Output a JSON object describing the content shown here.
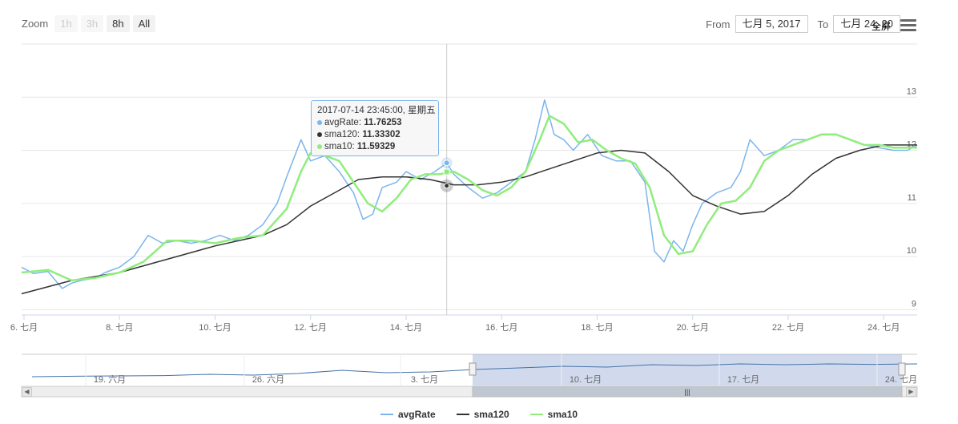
{
  "zoom": {
    "label": "Zoom",
    "buttons": [
      "1h",
      "3h",
      "8h",
      "All"
    ],
    "active": "8h"
  },
  "range": {
    "from_label": "From",
    "from_value": "七月 5, 2017",
    "to_label": "To",
    "to_value": "七月 24, 20"
  },
  "fullscreen_label": "全屏",
  "tooltip": {
    "header": "2017-07-14 23:45:00, 星期五",
    "rows": [
      {
        "name": "avgRate",
        "value": "11.76253",
        "color": "#7cb5ec"
      },
      {
        "name": "sma120",
        "value": "11.33302",
        "color": "#333333"
      },
      {
        "name": "sma10",
        "value": "11.59329",
        "color": "#90ed7d"
      }
    ]
  },
  "navigator": {
    "labels": [
      "19. 六月",
      "26. 六月",
      "3. 七月",
      "10. 七月",
      "17. 七月",
      "24. 七月"
    ]
  },
  "chart_data": {
    "type": "line",
    "x_tick_labels": [
      "6. 七月",
      "8. 七月",
      "10. 七月",
      "12. 七月",
      "14. 七月",
      "16. 七月",
      "18. 七月",
      "20. 七月",
      "22. 七月",
      "24. 七月"
    ],
    "y_ticks": [
      9,
      10,
      11,
      12,
      13
    ],
    "ylim": [
      8.9,
      14.0
    ],
    "xlim_days": [
      5.95,
      24.7
    ],
    "grid": true,
    "legend_position": "bottom-center",
    "series": [
      {
        "name": "avgRate",
        "color": "#7cb5ec",
        "x": [
          5.95,
          6.2,
          6.5,
          6.8,
          7.0,
          7.2,
          7.5,
          7.7,
          8.0,
          8.3,
          8.6,
          8.9,
          9.2,
          9.5,
          9.8,
          10.1,
          10.4,
          10.7,
          11.0,
          11.3,
          11.5,
          11.8,
          12.0,
          12.3,
          12.6,
          12.9,
          13.1,
          13.3,
          13.5,
          13.8,
          14.0,
          14.3,
          14.6,
          14.85,
          15.0,
          15.3,
          15.6,
          15.9,
          16.2,
          16.5,
          16.7,
          16.9,
          17.1,
          17.3,
          17.5,
          17.8,
          18.1,
          18.4,
          18.7,
          19.0,
          19.2,
          19.4,
          19.6,
          19.8,
          20.0,
          20.2,
          20.5,
          20.8,
          21.0,
          21.2,
          21.5,
          21.8,
          22.1,
          22.4,
          22.7,
          23.0,
          23.3,
          23.6,
          23.9,
          24.2,
          24.5,
          24.7
        ],
        "y": [
          9.8,
          9.68,
          9.72,
          9.4,
          9.5,
          9.55,
          9.6,
          9.7,
          9.8,
          10.0,
          10.4,
          10.25,
          10.3,
          10.25,
          10.3,
          10.4,
          10.3,
          10.4,
          10.6,
          11.0,
          11.5,
          12.2,
          11.8,
          11.9,
          11.6,
          11.2,
          10.7,
          10.8,
          11.3,
          11.4,
          11.6,
          11.45,
          11.6,
          11.76,
          11.55,
          11.3,
          11.1,
          11.2,
          11.4,
          11.6,
          12.2,
          12.95,
          12.3,
          12.2,
          12.0,
          12.3,
          11.9,
          11.8,
          11.8,
          11.4,
          10.1,
          9.9,
          10.3,
          10.1,
          10.6,
          11.0,
          11.2,
          11.3,
          11.6,
          12.2,
          11.9,
          12.0,
          12.2,
          12.2,
          12.3,
          12.3,
          12.2,
          12.1,
          12.05,
          12.0,
          12.0,
          12.1
        ]
      },
      {
        "name": "sma120",
        "color": "#333333",
        "x": [
          5.95,
          7.0,
          8.0,
          9.0,
          10.0,
          11.0,
          11.5,
          12.0,
          12.5,
          13.0,
          13.5,
          14.0,
          14.5,
          15.0,
          15.5,
          16.0,
          16.5,
          17.0,
          17.5,
          18.0,
          18.5,
          19.0,
          19.5,
          20.0,
          20.5,
          21.0,
          21.5,
          22.0,
          22.5,
          23.0,
          23.5,
          24.0,
          24.7
        ],
        "y": [
          9.3,
          9.55,
          9.7,
          9.95,
          10.2,
          10.4,
          10.6,
          10.95,
          11.2,
          11.45,
          11.5,
          11.5,
          11.45,
          11.35,
          11.35,
          11.4,
          11.5,
          11.65,
          11.8,
          11.95,
          12.0,
          11.95,
          11.6,
          11.15,
          10.95,
          10.8,
          10.85,
          11.15,
          11.55,
          11.85,
          12.0,
          12.1,
          12.1
        ]
      },
      {
        "name": "sma10",
        "color": "#90ed7d",
        "x": [
          5.95,
          6.5,
          7.0,
          7.5,
          8.0,
          8.5,
          9.0,
          9.5,
          10.0,
          10.5,
          11.0,
          11.5,
          11.8,
          12.0,
          12.3,
          12.6,
          12.9,
          13.2,
          13.5,
          13.8,
          14.1,
          14.4,
          14.7,
          15.0,
          15.3,
          15.6,
          15.9,
          16.2,
          16.5,
          16.8,
          17.0,
          17.3,
          17.6,
          17.9,
          18.2,
          18.5,
          18.8,
          19.1,
          19.4,
          19.7,
          20.0,
          20.3,
          20.6,
          20.9,
          21.2,
          21.5,
          21.8,
          22.1,
          22.4,
          22.7,
          23.0,
          23.3,
          23.6,
          23.9,
          24.2,
          24.5,
          24.7
        ],
        "y": [
          9.7,
          9.75,
          9.55,
          9.6,
          9.7,
          9.9,
          10.3,
          10.3,
          10.25,
          10.35,
          10.4,
          10.9,
          11.6,
          11.95,
          11.9,
          11.8,
          11.4,
          11.0,
          10.85,
          11.1,
          11.45,
          11.55,
          11.55,
          11.6,
          11.45,
          11.25,
          11.15,
          11.3,
          11.6,
          12.2,
          12.65,
          12.5,
          12.15,
          12.2,
          12.0,
          11.85,
          11.75,
          11.3,
          10.4,
          10.05,
          10.1,
          10.6,
          11.0,
          11.05,
          11.3,
          11.8,
          12.0,
          12.1,
          12.2,
          12.3,
          12.3,
          12.2,
          12.1,
          12.1,
          12.05,
          12.05,
          12.05
        ]
      }
    ],
    "navigator_series": {
      "x": [
        0,
        0.05,
        0.1,
        0.15,
        0.2,
        0.25,
        0.3,
        0.35,
        0.4,
        0.45,
        0.5,
        0.55,
        0.6,
        0.65,
        0.7,
        0.75,
        0.8,
        0.85,
        0.9,
        0.95,
        1.0
      ],
      "y": [
        0.15,
        0.18,
        0.2,
        0.22,
        0.3,
        0.25,
        0.35,
        0.55,
        0.4,
        0.45,
        0.6,
        0.7,
        0.8,
        0.75,
        0.9,
        0.85,
        0.95,
        0.9,
        0.95,
        0.92,
        0.95
      ]
    }
  }
}
